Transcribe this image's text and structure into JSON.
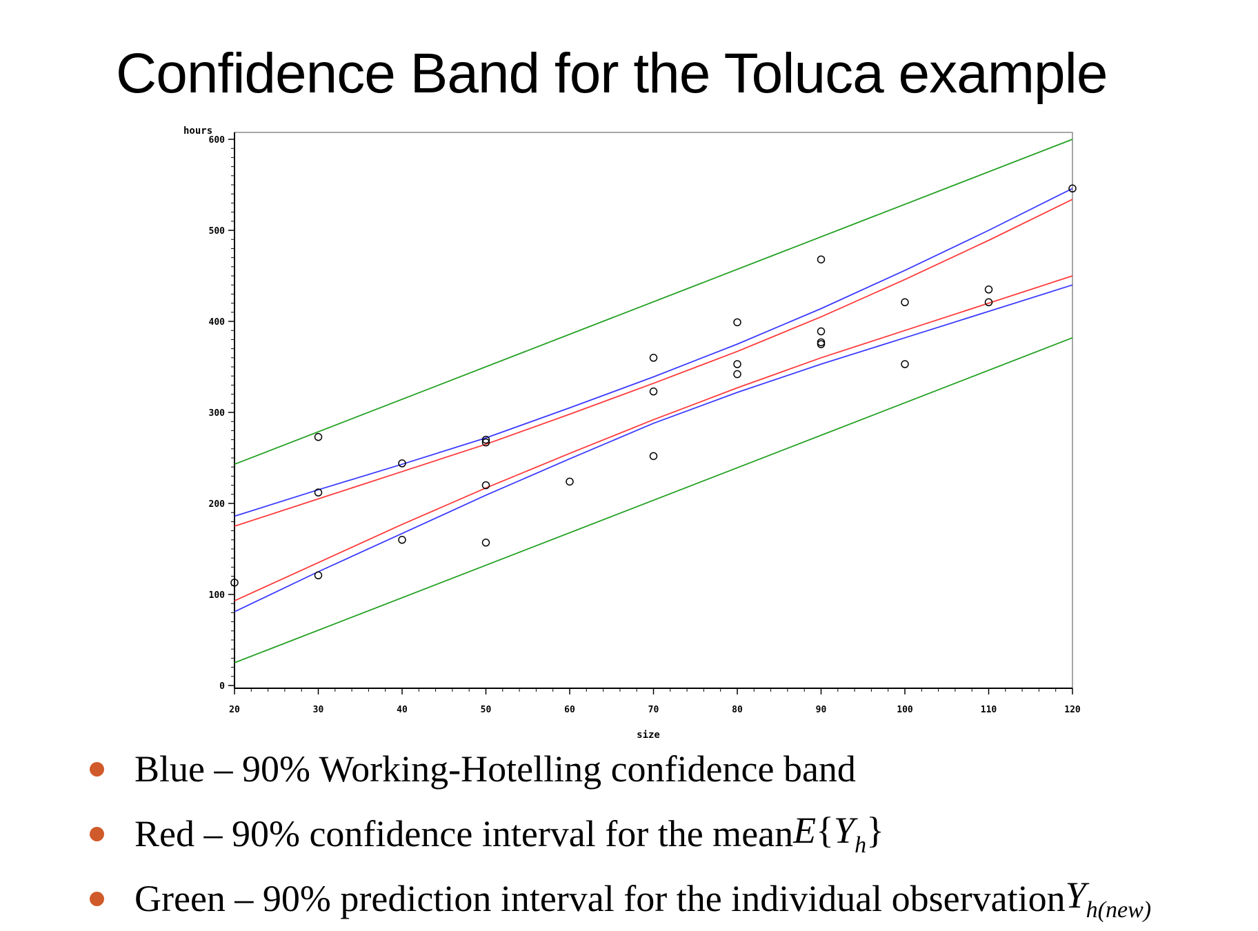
{
  "slide": {
    "title": "Confidence Band for the Toluca example"
  },
  "colors": {
    "working_hotelling": "#3a3aff",
    "mean_ci": "#ff3a3a",
    "prediction": "#22a022",
    "bullet": "#d05a2a"
  },
  "chart_data": {
    "type": "scatter",
    "xlabel": "size",
    "ylabel": "hours",
    "xlim": [
      20,
      120
    ],
    "ylim": [
      0,
      600
    ],
    "x_ticks": [
      "20",
      "30",
      "40",
      "50",
      "60",
      "70",
      "80",
      "90",
      "100",
      "110",
      "120"
    ],
    "y_ticks": [
      "0",
      "100",
      "200",
      "300",
      "400",
      "500",
      "600"
    ],
    "grid": false,
    "points": [
      {
        "x": 20,
        "y": 113
      },
      {
        "x": 30,
        "y": 273
      },
      {
        "x": 30,
        "y": 212
      },
      {
        "x": 30,
        "y": 121
      },
      {
        "x": 40,
        "y": 244
      },
      {
        "x": 40,
        "y": 160
      },
      {
        "x": 50,
        "y": 270
      },
      {
        "x": 50,
        "y": 267
      },
      {
        "x": 50,
        "y": 220
      },
      {
        "x": 50,
        "y": 157
      },
      {
        "x": 60,
        "y": 224
      },
      {
        "x": 70,
        "y": 360
      },
      {
        "x": 70,
        "y": 323
      },
      {
        "x": 70,
        "y": 252
      },
      {
        "x": 80,
        "y": 399
      },
      {
        "x": 80,
        "y": 353
      },
      {
        "x": 80,
        "y": 342
      },
      {
        "x": 90,
        "y": 468
      },
      {
        "x": 90,
        "y": 389
      },
      {
        "x": 90,
        "y": 377
      },
      {
        "x": 90,
        "y": 375
      },
      {
        "x": 100,
        "y": 421
      },
      {
        "x": 100,
        "y": 353
      },
      {
        "x": 110,
        "y": 435
      },
      {
        "x": 110,
        "y": 421
      },
      {
        "x": 120,
        "y": 546
      }
    ],
    "bands": [
      {
        "key": "working_hotelling_upper",
        "color": "working_hotelling",
        "x": [
          20,
          30,
          40,
          50,
          60,
          70,
          80,
          90,
          100,
          110,
          120
        ],
        "y": [
          186,
          215,
          243,
          272,
          305,
          339,
          375,
          414,
          456,
          500,
          546
        ]
      },
      {
        "key": "working_hotelling_lower",
        "color": "working_hotelling",
        "x": [
          20,
          30,
          40,
          50,
          60,
          70,
          80,
          90,
          100,
          110,
          120
        ],
        "y": [
          81,
          125,
          167,
          209,
          249,
          288,
          322,
          353,
          382,
          411,
          440
        ]
      },
      {
        "key": "mean_ci_upper",
        "color": "mean_ci",
        "x": [
          20,
          30,
          40,
          50,
          60,
          70,
          80,
          90,
          100,
          110,
          120
        ],
        "y": [
          175,
          205,
          235,
          265,
          298,
          332,
          367,
          405,
          446,
          489,
          534
        ]
      },
      {
        "key": "mean_ci_lower",
        "color": "mean_ci",
        "x": [
          20,
          30,
          40,
          50,
          60,
          70,
          80,
          90,
          100,
          110,
          120
        ],
        "y": [
          93,
          135,
          177,
          217,
          255,
          292,
          327,
          360,
          390,
          420,
          450
        ]
      },
      {
        "key": "prediction_upper",
        "color": "prediction",
        "x": [
          20,
          120
        ],
        "y": [
          243,
          600
        ]
      },
      {
        "key": "prediction_lower",
        "color": "prediction",
        "x": [
          20,
          120
        ],
        "y": [
          25,
          382
        ]
      }
    ]
  },
  "legend_bullets": [
    {
      "text": "Blue – 90% Working-Hotelling confidence band"
    },
    {
      "text": "Red – 90% confidence interval for the mean ",
      "math": {
        "letter": "E",
        "open": "{",
        "var": "Y",
        "sub": "h",
        "close": "}"
      }
    },
    {
      "text": "Green – 90% prediction interval for the individual observation ",
      "math": {
        "var": "Y",
        "sub": "h(new)"
      }
    }
  ]
}
